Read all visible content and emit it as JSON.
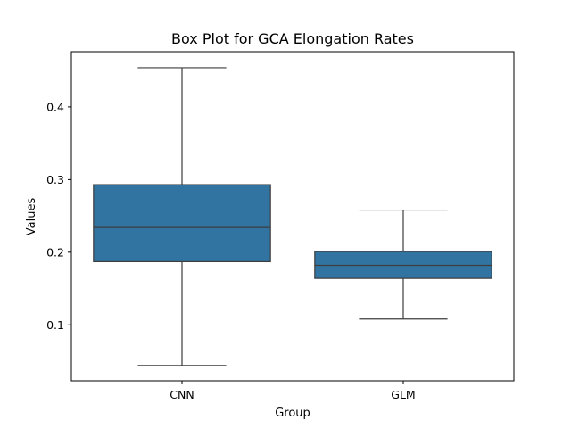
{
  "chart_data": {
    "type": "box",
    "title": "Box Plot for GCA Elongation Rates",
    "xlabel": "Group",
    "ylabel": "Values",
    "categories": [
      "CNN",
      "GLM"
    ],
    "ylim": [
      0.023,
      0.476
    ],
    "yticks": [
      0.1,
      0.2,
      0.3,
      0.4
    ],
    "ytick_labels": [
      "0.1",
      "0.2",
      "0.3",
      "0.4"
    ],
    "boxes": [
      {
        "category": "CNN",
        "whisker_low": 0.044,
        "q1": 0.187,
        "median": 0.234,
        "q3": 0.293,
        "whisker_high": 0.454
      },
      {
        "category": "GLM",
        "whisker_low": 0.108,
        "q1": 0.164,
        "median": 0.182,
        "q3": 0.201,
        "whisker_high": 0.258
      }
    ],
    "box_color": "#3274a1",
    "line_color": "#3d3d3d",
    "grid": false
  }
}
